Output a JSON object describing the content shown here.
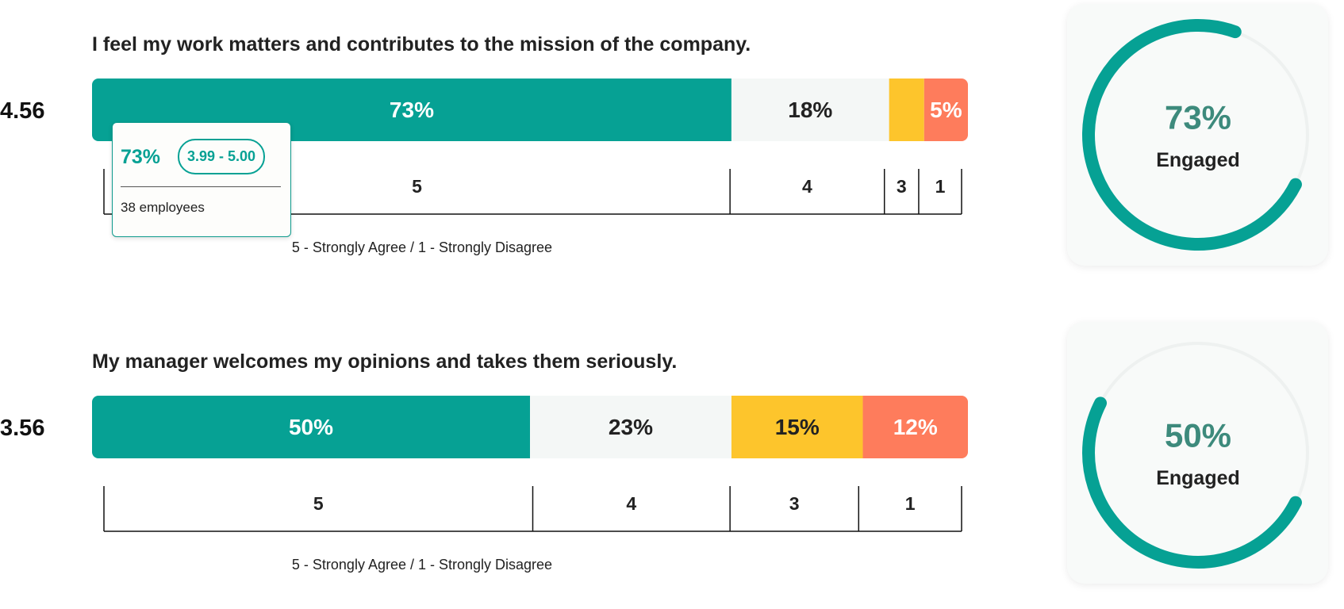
{
  "items": [
    {
      "question": "I feel my work matters and contributes to the mission of the company.",
      "score": 4.56,
      "segments": [
        {
          "value": 73,
          "label": "73%"
        },
        {
          "value": 18,
          "label": "18%"
        },
        {
          "value": 4
        },
        {
          "value": 5,
          "label": "5%"
        }
      ],
      "scale": [
        5,
        4,
        3,
        1
      ],
      "legend": "5 - Strongly Agree / 1 - Strongly Disagree",
      "tooltip": {
        "percent": "73%",
        "range": "3.99 - 5.00",
        "employees": "38 employees"
      },
      "gauge": {
        "value": 73,
        "label": "73%",
        "caption": "Engaged"
      }
    },
    {
      "question": "My manager welcomes my opinions and takes them seriously.",
      "score": 3.56,
      "segments": [
        {
          "value": 50,
          "label": "50%"
        },
        {
          "value": 23,
          "label": "23%"
        },
        {
          "value": 15,
          "label": "15%"
        },
        {
          "value": 12,
          "label": "12%"
        }
      ],
      "scale": [
        5,
        4,
        3,
        1
      ],
      "legend": "5 - Strongly Agree / 1 - Strongly Disagree",
      "gauge": {
        "value": 50,
        "label": "50%",
        "caption": "Engaged"
      }
    }
  ],
  "colors": [
    "#06a194",
    "#f4f7f6",
    "#fdc52c",
    "#fe7c5c"
  ]
}
